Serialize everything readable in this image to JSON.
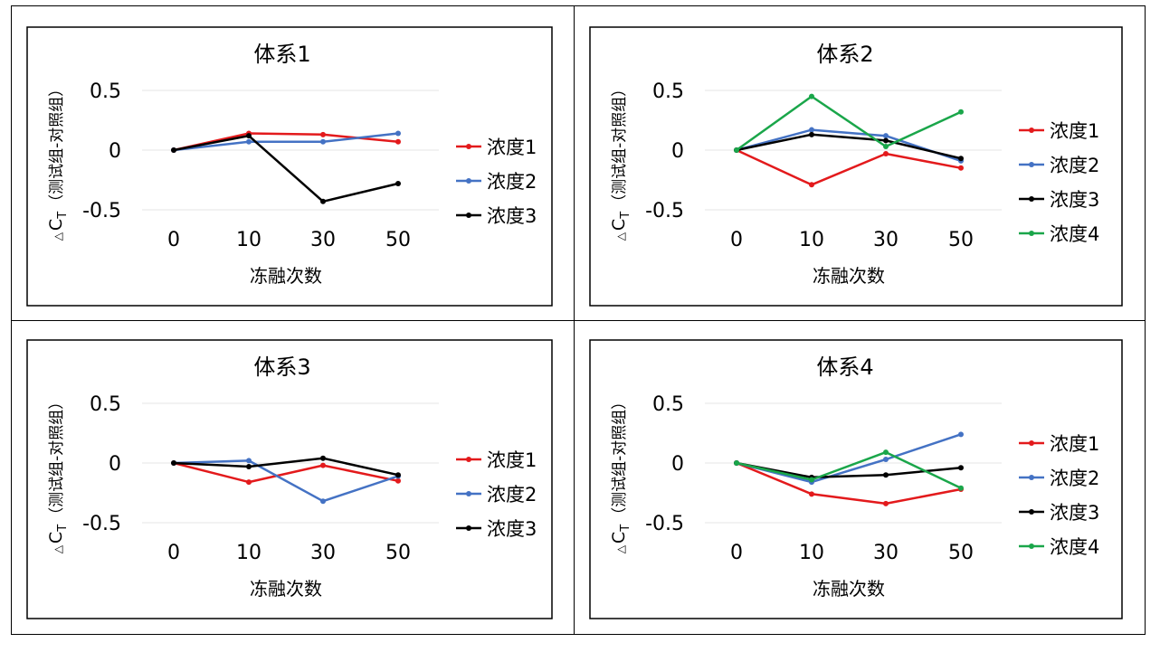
{
  "chart_data": [
    {
      "type": "line",
      "title": "体系1",
      "xlabel": "冻融次数",
      "ylabel": {
        "delta": "△",
        "symbol": "C",
        "subscript": "T",
        "paren": "（测试组-对照组）"
      },
      "categories": [
        "0",
        "10",
        "30",
        "50"
      ],
      "yticks": [
        "0.5",
        "0",
        "-0.5"
      ],
      "ylim": [
        -0.5,
        0.5
      ],
      "legend_position": "right",
      "series": [
        {
          "name": "浓度1",
          "color": "#e31a1c",
          "values": [
            0,
            0.14,
            0.13,
            0.07
          ]
        },
        {
          "name": "浓度2",
          "color": "#4472c4",
          "values": [
            0,
            0.07,
            0.07,
            0.14
          ]
        },
        {
          "name": "浓度3",
          "color": "#000000",
          "values": [
            0,
            0.12,
            -0.43,
            -0.28
          ]
        }
      ]
    },
    {
      "type": "line",
      "title": "体系2",
      "xlabel": "冻融次数",
      "ylabel": {
        "delta": "△",
        "symbol": "C",
        "subscript": "T",
        "paren": "（测试组-对照组）"
      },
      "categories": [
        "0",
        "10",
        "30",
        "50"
      ],
      "yticks": [
        "0.5",
        "0",
        "-0.5"
      ],
      "ylim": [
        -0.5,
        0.5
      ],
      "legend_position": "right",
      "series": [
        {
          "name": "浓度1",
          "color": "#e31a1c",
          "values": [
            0,
            -0.29,
            -0.03,
            -0.15
          ]
        },
        {
          "name": "浓度2",
          "color": "#4472c4",
          "values": [
            0,
            0.17,
            0.12,
            -0.09
          ]
        },
        {
          "name": "浓度3",
          "color": "#000000",
          "values": [
            0,
            0.13,
            0.08,
            -0.07
          ]
        },
        {
          "name": "浓度4",
          "color": "#1aa64a",
          "values": [
            0,
            0.45,
            0.03,
            0.32
          ]
        }
      ]
    },
    {
      "type": "line",
      "title": "体系3",
      "xlabel": "冻融次数",
      "ylabel": {
        "delta": "△",
        "symbol": "C",
        "subscript": "T",
        "paren": "（测试组-对照组）"
      },
      "categories": [
        "0",
        "10",
        "30",
        "50"
      ],
      "yticks": [
        "0.5",
        "0",
        "-0.5"
      ],
      "ylim": [
        -0.5,
        0.5
      ],
      "legend_position": "right",
      "series": [
        {
          "name": "浓度1",
          "color": "#e31a1c",
          "values": [
            0,
            -0.16,
            -0.02,
            -0.15
          ]
        },
        {
          "name": "浓度2",
          "color": "#4472c4",
          "values": [
            0,
            0.02,
            -0.32,
            -0.11
          ]
        },
        {
          "name": "浓度3",
          "color": "#000000",
          "values": [
            0,
            -0.03,
            0.04,
            -0.1
          ]
        }
      ]
    },
    {
      "type": "line",
      "title": "体系4",
      "xlabel": "冻融次数",
      "ylabel": {
        "delta": "△",
        "symbol": "C",
        "subscript": "T",
        "paren": "（测试组-对照组）"
      },
      "categories": [
        "0",
        "10",
        "30",
        "50"
      ],
      "yticks": [
        "0.5",
        "0",
        "-0.5"
      ],
      "ylim": [
        -0.5,
        0.5
      ],
      "legend_position": "right",
      "series": [
        {
          "name": "浓度1",
          "color": "#e31a1c",
          "values": [
            0,
            -0.26,
            -0.34,
            -0.22
          ]
        },
        {
          "name": "浓度2",
          "color": "#4472c4",
          "values": [
            0,
            -0.16,
            0.03,
            0.24
          ]
        },
        {
          "name": "浓度3",
          "color": "#000000",
          "values": [
            0,
            -0.12,
            -0.1,
            -0.04
          ]
        },
        {
          "name": "浓度4",
          "color": "#1aa64a",
          "values": [
            0,
            -0.14,
            0.09,
            -0.21
          ]
        }
      ]
    }
  ]
}
